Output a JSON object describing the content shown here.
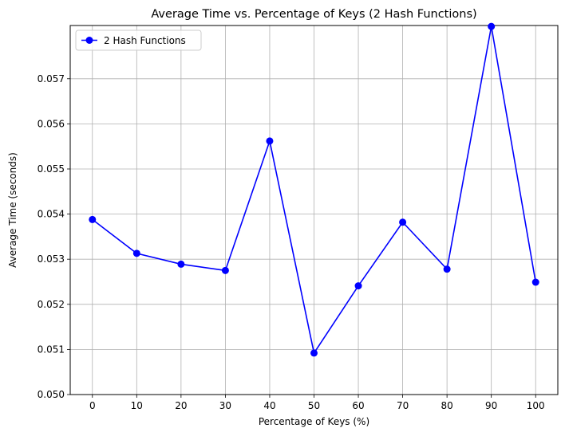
{
  "chart_data": {
    "type": "line",
    "title": "Average Time vs. Percentage of Keys (2 Hash Functions)",
    "xlabel": "Percentage of Keys (%)",
    "ylabel": "Average Time (seconds)",
    "x": [
      0,
      10,
      20,
      30,
      40,
      50,
      60,
      70,
      80,
      90,
      100
    ],
    "x_ticks": [
      "0",
      "10",
      "20",
      "30",
      "40",
      "50",
      "60",
      "70",
      "80",
      "90",
      "100"
    ],
    "y_ticks": [
      "0.050",
      "0.051",
      "0.052",
      "0.053",
      "0.054",
      "0.055",
      "0.056",
      "0.057"
    ],
    "ylim": [
      0.05,
      0.05818
    ],
    "xlim": [
      -5,
      105
    ],
    "grid": true,
    "legend_position": "top-left",
    "series": [
      {
        "name": "2 Hash Functions",
        "color": "#0000ff",
        "marker": "circle",
        "values": [
          0.05388,
          0.05313,
          0.05289,
          0.05275,
          0.05562,
          0.05092,
          0.05241,
          0.05382,
          0.05278,
          0.05816,
          0.05249
        ]
      }
    ]
  }
}
